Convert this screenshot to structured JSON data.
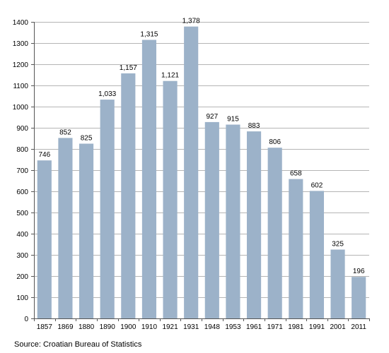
{
  "chart_data": {
    "type": "bar",
    "title": "",
    "xlabel": "",
    "ylabel": "",
    "ylim": [
      0,
      1400
    ],
    "yticks": [
      0,
      100,
      200,
      300,
      400,
      500,
      600,
      700,
      800,
      900,
      1000,
      1100,
      1200,
      1300,
      1400
    ],
    "categories": [
      "1857",
      "1869",
      "1880",
      "1890",
      "1900",
      "1910",
      "1921",
      "1931",
      "1948",
      "1953",
      "1961",
      "1971",
      "1981",
      "1991",
      "2001",
      "2011"
    ],
    "values": [
      746,
      852,
      825,
      1033,
      1157,
      1315,
      1121,
      1378,
      927,
      915,
      883,
      806,
      658,
      602,
      325,
      196
    ],
    "value_labels": [
      "746",
      "852",
      "825",
      "1,033",
      "1,157",
      "1,315",
      "1,121",
      "1,378",
      "927",
      "915",
      "883",
      "806",
      "658",
      "602",
      "325",
      "196"
    ],
    "grid": true,
    "legend": "none",
    "colors": {
      "bar": "#9cb2c9",
      "grid": "#b5b5b5",
      "axis": "#555555",
      "text": "#000000"
    }
  },
  "source_note": "Source: Croatian Bureau of Statistics"
}
